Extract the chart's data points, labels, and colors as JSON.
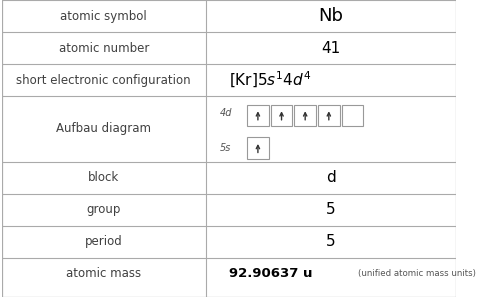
{
  "rows": [
    {
      "label": "atomic symbol",
      "value": "Nb",
      "type": "text"
    },
    {
      "label": "atomic number",
      "value": "41",
      "type": "text"
    },
    {
      "label": "short electronic configuration",
      "value": "[Kr]5s^1 4d^4",
      "type": "formula"
    },
    {
      "label": "Aufbau diagram",
      "value": "",
      "type": "aufbau"
    },
    {
      "label": "block",
      "value": "d",
      "type": "text"
    },
    {
      "label": "group",
      "value": "5",
      "type": "text"
    },
    {
      "label": "period",
      "value": "5",
      "type": "text"
    },
    {
      "label": "atomic mass",
      "value": "92.90637 u",
      "type": "mass"
    }
  ],
  "col_split": 0.45,
  "bg_color": "#ffffff",
  "label_color": "#404040",
  "value_color": "#000000",
  "aufbau_4d_electrons": [
    1,
    1,
    1,
    1,
    0
  ],
  "aufbau_5s_electrons": [
    1
  ],
  "table_border_color": "#aaaaaa"
}
